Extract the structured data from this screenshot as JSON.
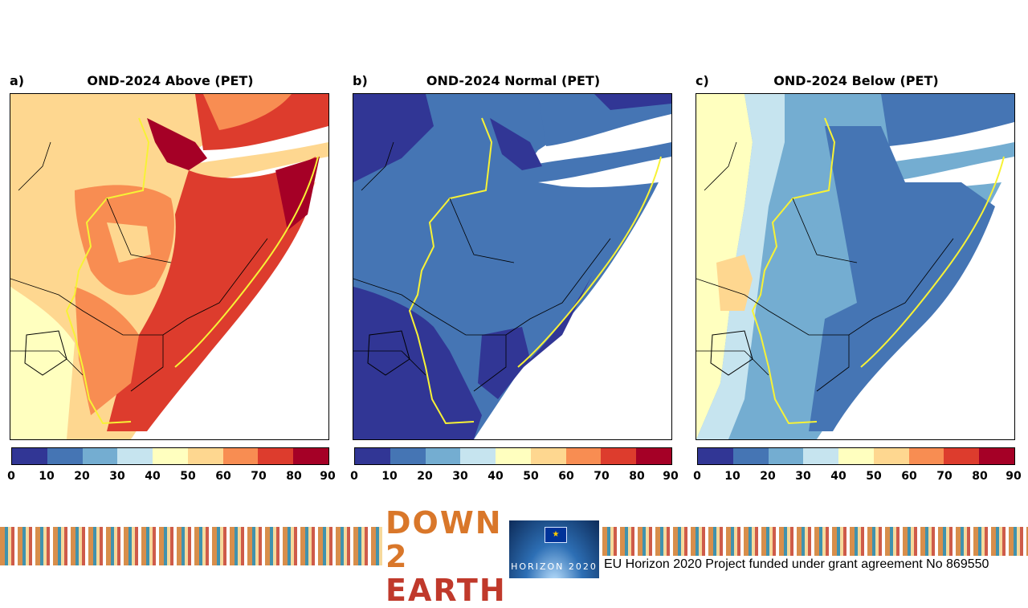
{
  "panels": [
    {
      "label": "a)",
      "title": "OND-2024 Above (PET)"
    },
    {
      "label": "b)",
      "title": "OND-2024 Normal (PET)"
    },
    {
      "label": "c)",
      "title": "OND-2024 Below (PET)"
    }
  ],
  "colorbar": {
    "ticks": [
      "0",
      "10",
      "20",
      "30",
      "40",
      "50",
      "60",
      "70",
      "80",
      "90"
    ],
    "colors": [
      "#313695",
      "#4575b4",
      "#74add1",
      "#c6e4ef",
      "#ffffbf",
      "#fed790",
      "#f88d52",
      "#dd3c2d",
      "#a50026"
    ]
  },
  "map_palette": {
    "above": [
      "#fed790",
      "#f88d52",
      "#dd3c2d",
      "#a50026",
      "#ffffbf"
    ],
    "normal": [
      "#4575b4",
      "#313695",
      "#74add1"
    ],
    "below": [
      "#74add1",
      "#4575b4",
      "#c6e4ef",
      "#ffffbf",
      "#fed790"
    ]
  },
  "footer": {
    "logo_line1": "DOWN 2",
    "logo_line2": "EARTH",
    "horizon_text": "HORIZON 2020",
    "funding_text": "EU Horizon 2020 Project funded under grant agreement No 869550"
  }
}
